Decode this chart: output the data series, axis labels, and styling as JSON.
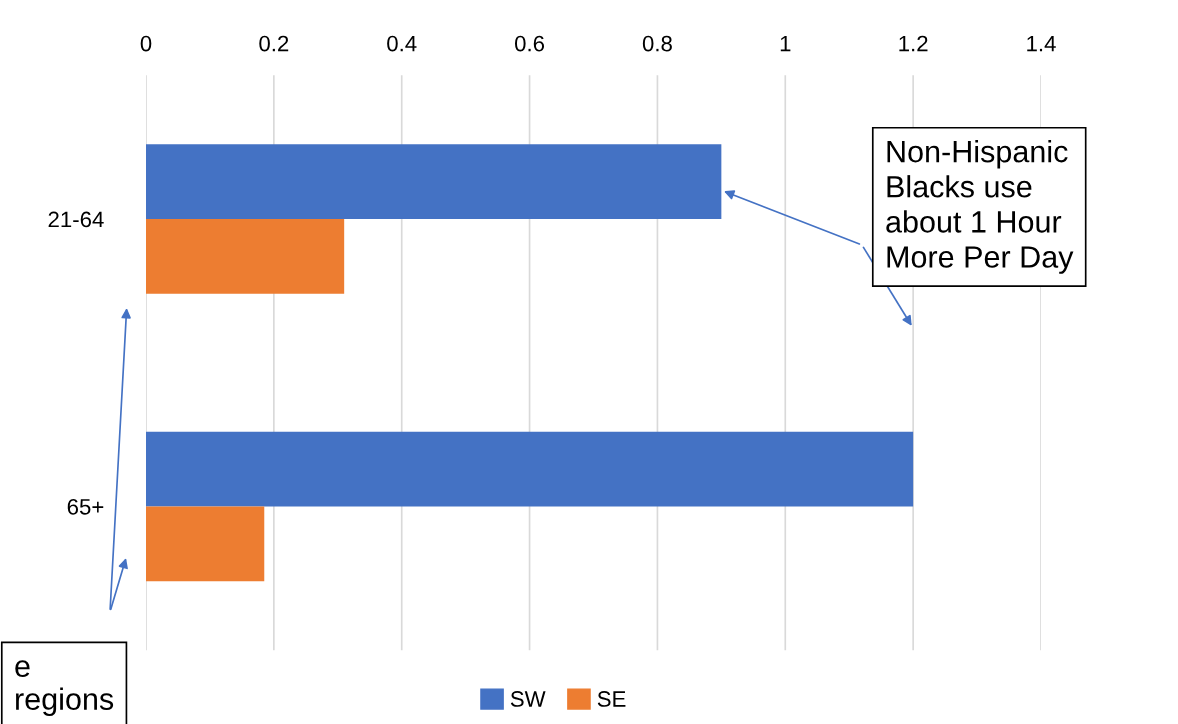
{
  "chart_data": {
    "type": "bar",
    "orientation": "horizontal",
    "categories": [
      "21-64",
      "65+"
    ],
    "series": [
      {
        "name": "SW",
        "color": "#4472c4",
        "values": [
          0.9,
          1.2
        ]
      },
      {
        "name": "SE",
        "color": "#ed7d31",
        "values": [
          0.31,
          0.185
        ]
      }
    ],
    "xlim": [
      0,
      1.4
    ],
    "xticks": [
      0,
      0.2,
      0.4,
      0.6,
      0.8,
      1,
      1.2,
      1.4
    ],
    "grid": "x",
    "legend": "bottom",
    "annotations": [
      "Non-Hispanic\nBlacks use\nabout 1 Hour\nMore Per Day",
      "e\nregions"
    ]
  }
}
